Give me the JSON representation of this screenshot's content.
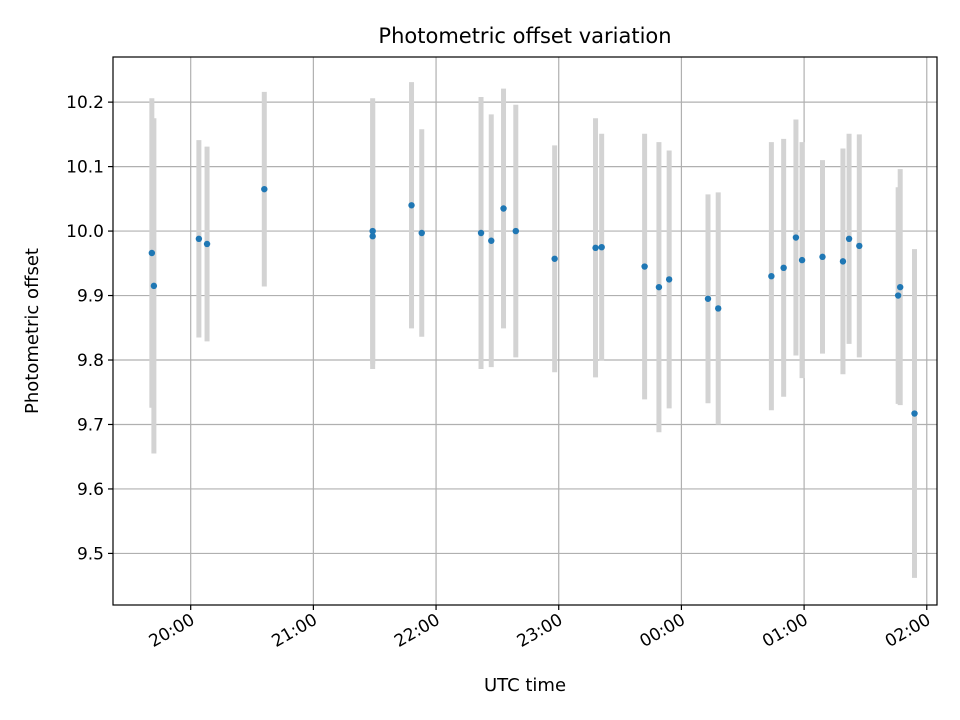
{
  "chart_data": {
    "type": "scatter",
    "title": "Photometric offset variation",
    "xlabel": "UTC time",
    "ylabel": "Photometric offset",
    "xlim": [
      "19:22",
      "02:05"
    ],
    "ylim": [
      9.42,
      10.27
    ],
    "grid": true,
    "x_ticks": [
      "20:00",
      "21:00",
      "22:00",
      "23:00",
      "00:00",
      "01:00",
      "02:00"
    ],
    "y_ticks": [
      9.5,
      9.6,
      9.7,
      9.8,
      9.9,
      10.0,
      10.1,
      10.2
    ],
    "marker_color": "#1f77b4",
    "errorbar_color": "#d3d3d3",
    "series": [
      {
        "points": [
          {
            "x": "19:41",
            "y": 9.966,
            "err": 0.24
          },
          {
            "x": "19:42",
            "y": 9.915,
            "err": 0.26
          },
          {
            "x": "20:04",
            "y": 9.988,
            "err": 0.153
          },
          {
            "x": "20:08",
            "y": 9.98,
            "err": 0.151
          },
          {
            "x": "20:36",
            "y": 10.065,
            "err": 0.151
          },
          {
            "x": "21:29",
            "y": 10.0,
            "err": 0.206
          },
          {
            "x": "21:29",
            "y": 9.992,
            "err": 0.206
          },
          {
            "x": "21:48",
            "y": 10.04,
            "err": 0.191
          },
          {
            "x": "21:53",
            "y": 9.997,
            "err": 0.161
          },
          {
            "x": "22:22",
            "y": 9.997,
            "err": 0.211
          },
          {
            "x": "22:27",
            "y": 9.985,
            "err": 0.196
          },
          {
            "x": "22:33",
            "y": 10.035,
            "err": 0.186
          },
          {
            "x": "22:39",
            "y": 10.0,
            "err": 0.196
          },
          {
            "x": "22:58",
            "y": 9.957,
            "err": 0.176
          },
          {
            "x": "23:18",
            "y": 9.974,
            "err": 0.201
          },
          {
            "x": "23:21",
            "y": 9.975,
            "err": 0.176
          },
          {
            "x": "23:42",
            "y": 9.945,
            "err": 0.206
          },
          {
            "x": "23:49",
            "y": 9.913,
            "err": 0.225
          },
          {
            "x": "23:54",
            "y": 9.925,
            "err": 0.2
          },
          {
            "x": "00:13",
            "y": 9.895,
            "err": 0.162
          },
          {
            "x": "00:18",
            "y": 9.88,
            "err": 0.18
          },
          {
            "x": "00:44",
            "y": 9.93,
            "err": 0.208
          },
          {
            "x": "00:50",
            "y": 9.943,
            "err": 0.2
          },
          {
            "x": "00:56",
            "y": 9.99,
            "err": 0.183
          },
          {
            "x": "00:59",
            "y": 9.955,
            "err": 0.183
          },
          {
            "x": "01:09",
            "y": 9.96,
            "err": 0.15
          },
          {
            "x": "01:19",
            "y": 9.953,
            "err": 0.175
          },
          {
            "x": "01:22",
            "y": 9.988,
            "err": 0.163
          },
          {
            "x": "01:27",
            "y": 9.977,
            "err": 0.173
          },
          {
            "x": "01:46",
            "y": 9.9,
            "err": 0.168
          },
          {
            "x": "01:47",
            "y": 9.913,
            "err": 0.183
          },
          {
            "x": "01:54",
            "y": 9.717,
            "err": 0.255
          }
        ]
      }
    ]
  }
}
